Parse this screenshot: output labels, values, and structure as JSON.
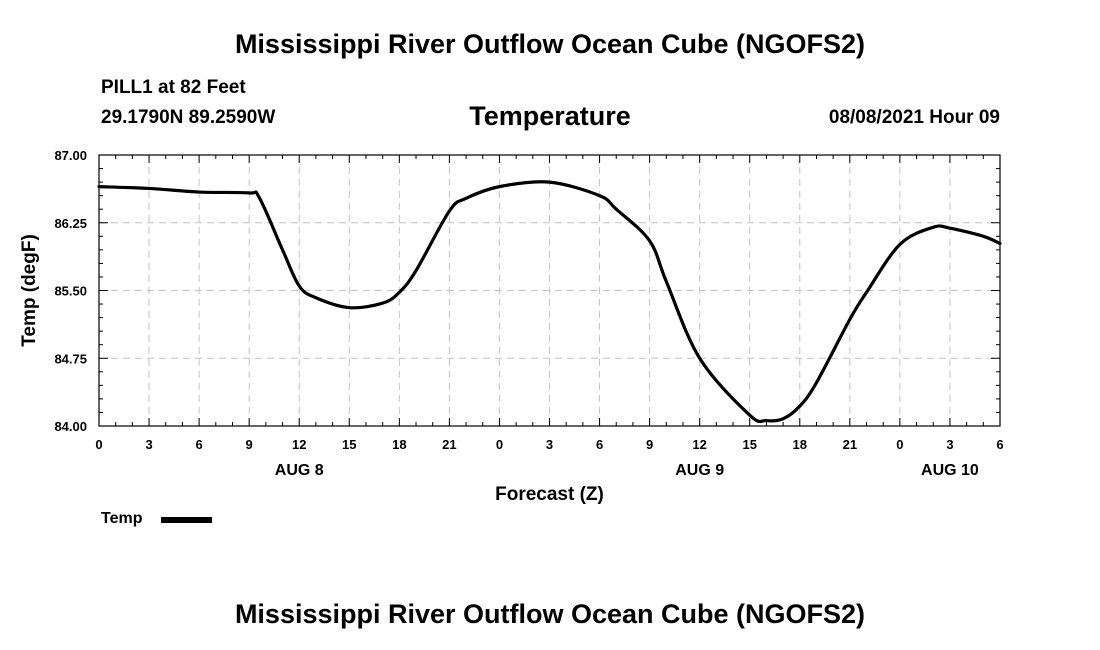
{
  "chart_data": {
    "type": "line",
    "title": "Mississippi River Outflow Ocean Cube (NGOFS2)",
    "footer_title": "Mississippi River Outflow Ocean Cube (NGOFS2)",
    "station": "PILL1 at 82 Feet",
    "coordinates": "29.1790N  89.2590W",
    "subtitle": "Temperature",
    "datetime": "08/08/2021 Hour 09",
    "xlabel": "Forecast (Z)",
    "ylabel": "Temp (degF)",
    "xlim": [
      0,
      54
    ],
    "ylim": [
      84.0,
      87.0
    ],
    "x_ticks": [
      0,
      3,
      6,
      9,
      12,
      15,
      18,
      21,
      24,
      27,
      30,
      33,
      36,
      39,
      42,
      45,
      48,
      51,
      54
    ],
    "x_tick_labels": [
      "0",
      "3",
      "6",
      "9",
      "12",
      "15",
      "18",
      "21",
      "0",
      "3",
      "6",
      "9",
      "12",
      "15",
      "18",
      "21",
      "0",
      "3",
      "6"
    ],
    "y_ticks": [
      84.0,
      84.75,
      85.5,
      86.25,
      87.0
    ],
    "y_tick_labels": [
      "84.00",
      "84.75",
      "85.50",
      "86.25",
      "87.00"
    ],
    "date_labels": [
      {
        "x": 12,
        "label": "AUG 8"
      },
      {
        "x": 36,
        "label": "AUG 9"
      },
      {
        "x": 51,
        "label": "AUG 10"
      }
    ],
    "grid": true,
    "legend_position": "bottom-left",
    "series": [
      {
        "name": "Temp",
        "color": "#000000",
        "x": [
          0,
          3,
          6,
          9,
          9.6,
          11,
          12,
          13,
          15,
          17,
          18,
          19,
          21,
          22,
          24,
          27,
          30,
          31,
          33,
          34,
          36,
          39,
          40,
          41,
          42,
          43,
          45,
          46,
          48,
          50,
          51,
          53,
          54
        ],
        "values": [
          86.65,
          86.63,
          86.59,
          86.58,
          86.53,
          85.95,
          85.55,
          85.42,
          85.31,
          85.36,
          85.48,
          85.72,
          86.38,
          86.52,
          86.65,
          86.7,
          86.55,
          86.4,
          86.05,
          85.6,
          84.75,
          84.12,
          84.06,
          84.08,
          84.22,
          84.48,
          85.18,
          85.48,
          86.01,
          86.2,
          86.19,
          86.1,
          86.02
        ]
      }
    ]
  }
}
